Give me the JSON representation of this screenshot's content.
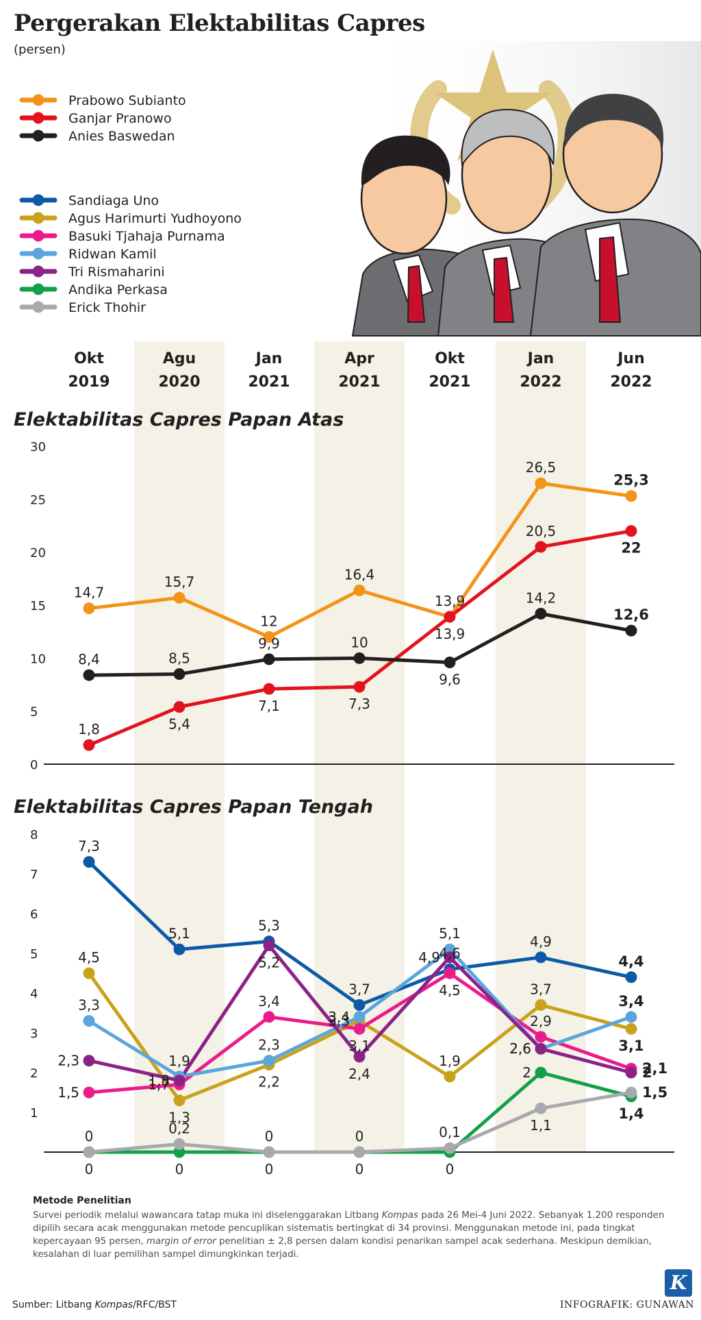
{
  "title": "Pergerakan Elektabilitas Capres",
  "unit": "(persen)",
  "colors": {
    "prabowo": "#f39419",
    "ganjar": "#e3131e",
    "anies": "#231f20",
    "sandiaga": "#0c5aa6",
    "ahy": "#c9a21b",
    "ahok": "#ec1b8c",
    "ridwan": "#5aa6dc",
    "risma": "#8b2288",
    "andika": "#12a14a",
    "erick": "#a7a9ac",
    "column_shade": "#f4f1e6"
  },
  "legend_top": [
    {
      "key": "prabowo",
      "label": "Prabowo Subianto"
    },
    {
      "key": "ganjar",
      "label": "Ganjar Pranowo"
    },
    {
      "key": "anies",
      "label": "Anies Baswedan"
    }
  ],
  "legend_mid": [
    {
      "key": "sandiaga",
      "label": "Sandiaga Uno"
    },
    {
      "key": "ahy",
      "label": "Agus Harimurti Yudhoyono"
    },
    {
      "key": "ahok",
      "label": "Basuki Tjahaja Purnama"
    },
    {
      "key": "ridwan",
      "label": "Ridwan Kamil"
    },
    {
      "key": "risma",
      "label": "Tri Rismaharini"
    },
    {
      "key": "andika",
      "label": "Andika Perkasa"
    },
    {
      "key": "erick",
      "label": "Erick Thohir"
    }
  ],
  "methodology": {
    "title": "Metode Penelitian",
    "text1": "Survei periodik melalui wawancara tatap muka ini diselenggarakan Litbang ",
    "text_italic1": "Kompas",
    "text2": " pada 26 Mei-4 Juni 2022. Sebanyak 1.200 responden dipilih secara acak menggunakan metode pencuplikan sistematis bertingkat di 34 provinsi. Menggunakan metode ini, pada tingkat kepercayaan 95 persen, ",
    "text_italic2": "margin of error",
    "text3": " penelitian ± 2,8 persen dalam kondisi penarikan sampel acak sederhana. Meskipun demikian, kesalahan di luar pemilihan sampel dimungkinkan terjadi."
  },
  "source": {
    "prefix": "Sumber: Litbang ",
    "italic": "Kompas",
    "suffix": "/RFC/BST"
  },
  "credit": "INFOGRAFIK: GUNAWAN",
  "logo_letter": "K",
  "chart_data": [
    {
      "type": "line",
      "title": "Elektabilitas Capres Papan Atas",
      "categories": [
        "Okt 2019",
        "Agu 2020",
        "Jan 2021",
        "Apr 2021",
        "Okt 2021",
        "Jan 2022",
        "Jun 2022"
      ],
      "category_lines": [
        [
          "Okt",
          "2019"
        ],
        [
          "Agu",
          "2020"
        ],
        [
          "Jan",
          "2021"
        ],
        [
          "Apr",
          "2021"
        ],
        [
          "Okt",
          "2021"
        ],
        [
          "Jan",
          "2022"
        ],
        [
          "Jun",
          "2022"
        ]
      ],
      "ylim": [
        0,
        30
      ],
      "yticks": [
        "0",
        "5",
        "10",
        "15",
        "20",
        "25",
        "30"
      ],
      "series": [
        {
          "key": "prabowo",
          "name": "Prabowo Subianto",
          "values": [
            14.7,
            15.7,
            12,
            16.4,
            13.9,
            26.5,
            25.3
          ],
          "labels": [
            "14,7",
            "15,7",
            "12",
            "16,4",
            "13,9",
            "26,5",
            "25,3"
          ],
          "label_pos": [
            "above",
            "above",
            "above",
            "above",
            "above",
            "above",
            "above"
          ]
        },
        {
          "key": "ganjar",
          "name": "Ganjar Pranowo",
          "values": [
            1.8,
            5.4,
            7.1,
            7.3,
            13.9,
            20.5,
            22
          ],
          "labels": [
            "1,8",
            "5,4",
            "7,1",
            "7,3",
            "13,9",
            "20,5",
            "22"
          ],
          "label_pos": [
            "above",
            "below",
            "below",
            "below",
            "below",
            "above",
            "below"
          ]
        },
        {
          "key": "anies",
          "name": "Anies Baswedan",
          "values": [
            8.4,
            8.5,
            9.9,
            10,
            9.6,
            14.2,
            12.6
          ],
          "labels": [
            "8,4",
            "8,5",
            "9,9",
            "10",
            "9,6",
            "14,2",
            "12,6"
          ],
          "label_pos": [
            "above",
            "above",
            "above",
            "above",
            "below",
            "above",
            "above"
          ]
        }
      ]
    },
    {
      "type": "line",
      "title": "Elektabilitas Capres Papan Tengah",
      "categories": [
        "Okt 2019",
        "Agu 2020",
        "Jan 2021",
        "Apr 2021",
        "Okt 2021",
        "Jan 2022",
        "Jun 2022"
      ],
      "ylim": [
        0,
        8
      ],
      "yticks": [
        "1",
        "2",
        "3",
        "4",
        "5",
        "6",
        "7",
        "8"
      ],
      "series": [
        {
          "key": "sandiaga",
          "name": "Sandiaga Uno",
          "values": [
            7.3,
            5.1,
            5.3,
            3.7,
            4.6,
            4.9,
            4.4
          ],
          "labels": [
            "7,3",
            "5,1",
            "5,3",
            "3,7",
            "4,6",
            "4,9",
            "4,4"
          ],
          "label_pos": [
            "above",
            "above",
            "above",
            "above",
            "above",
            "above",
            "above"
          ]
        },
        {
          "key": "ahy",
          "name": "Agus Harimurti Yudhoyono",
          "values": [
            4.5,
            1.3,
            2.2,
            3.3,
            1.9,
            3.7,
            3.1
          ],
          "labels": [
            "4,5",
            "1,3",
            "2,2",
            "3,3",
            "1,9",
            "3,7",
            "3,1"
          ],
          "label_pos": [
            "above",
            "below",
            "below",
            "left",
            "above",
            "above",
            "below"
          ]
        },
        {
          "key": "ahok",
          "name": "Basuki Tjahaja Purnama",
          "values": [
            1.5,
            1.7,
            3.4,
            3.1,
            4.5,
            2.9,
            2.1
          ],
          "labels": [
            "1,5",
            "1,7",
            "3,4",
            "3,1",
            "4,5",
            "2,9",
            "2,1"
          ],
          "label_pos": [
            "left",
            "left",
            "above",
            "below",
            "below",
            "above",
            "right"
          ]
        },
        {
          "key": "ridwan",
          "name": "Ridwan Kamil",
          "values": [
            3.3,
            1.9,
            2.3,
            3.4,
            5.1,
            2.6,
            3.4
          ],
          "labels": [
            "3,3",
            "1,9",
            "2,3",
            "3,4",
            "5,1",
            "2,6",
            "3,4"
          ],
          "label_pos": [
            "above",
            "above",
            "above",
            "left",
            "above",
            "left",
            "above"
          ]
        },
        {
          "key": "risma",
          "name": "Tri Rismaharini",
          "values": [
            2.3,
            1.8,
            5.2,
            2.4,
            4.9,
            2.6,
            2.0
          ],
          "labels": [
            "2,3",
            "1,8",
            "5,2",
            "2,4",
            "4,9",
            "2,6",
            "2"
          ],
          "label_pos": [
            "left",
            "left",
            "below",
            "below",
            "left",
            "left",
            "right"
          ]
        },
        {
          "key": "andika",
          "name": "Andika Perkasa",
          "values": [
            0,
            0,
            0,
            0,
            0,
            2.0,
            1.4
          ],
          "labels": [
            "0",
            "0",
            "0",
            "0",
            "0",
            "2",
            "1,4"
          ],
          "label_pos": [
            "below",
            "below",
            "below",
            "below",
            "below",
            "left",
            "below"
          ]
        },
        {
          "key": "erick",
          "name": "Erick Thohir",
          "values": [
            0,
            0.2,
            0,
            0,
            0.1,
            1.1,
            1.5
          ],
          "labels": [
            "0",
            "0,2",
            "0",
            "0",
            "0,1",
            "1,1",
            "1,5"
          ],
          "label_pos": [
            "above",
            "above",
            "above",
            "above",
            "above",
            "below",
            "right"
          ]
        }
      ]
    }
  ]
}
